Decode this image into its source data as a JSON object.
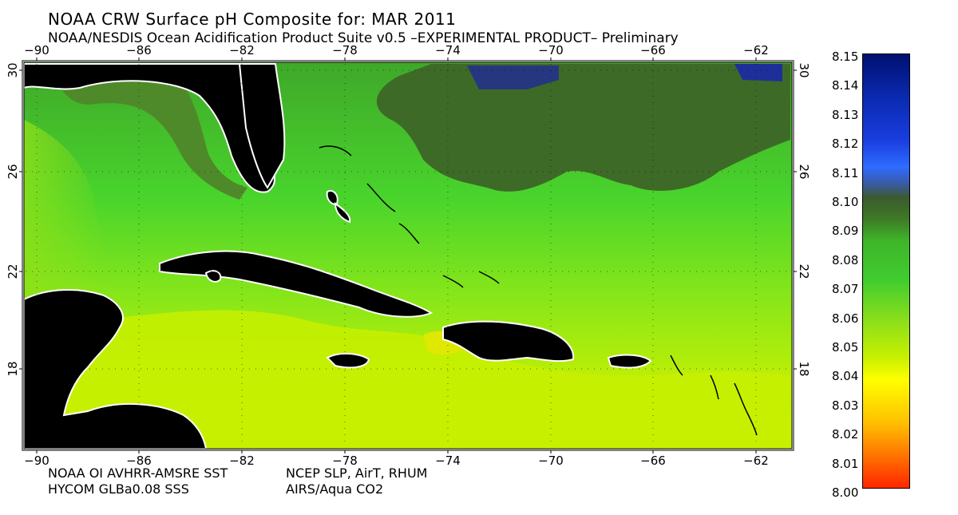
{
  "header": {
    "title": "NOAA CRW Surface pH Composite for: MAR 2011",
    "subtitle": "NOAA/NESDIS Ocean Acidification Product Suite  v0.5 –EXPERIMENTAL PRODUCT–    Preliminary"
  },
  "map": {
    "lon_ticks": [
      "−90",
      "−86",
      "−82",
      "−78",
      "−74",
      "−70",
      "−66",
      "−62"
    ],
    "lat_ticks": [
      "30",
      "26",
      "22",
      "18"
    ],
    "colors": {
      "land": "#000000",
      "coast_edge": "#ffffff",
      "ocean_high": "#3e6a28",
      "ocean_mid": "#3fcc2f",
      "ocean_low": "#c7f000"
    }
  },
  "credits": {
    "line1_left": "NOAA OI AVHRR-AMSRE SST",
    "line1_right": "NCEP SLP, AirT, RHUM",
    "line2_left": "HYCOM GLBa0.08 SSS",
    "line2_right": "AIRS/Aqua CO2"
  },
  "colorbar": {
    "labels": [
      "8.15",
      "8.14",
      "8.13",
      "8.12",
      "8.11",
      "8.10",
      "8.09",
      "8.08",
      "8.07",
      "8.06",
      "8.05",
      "8.04",
      "8.03",
      "8.02",
      "8.01",
      "8.00"
    ]
  }
}
